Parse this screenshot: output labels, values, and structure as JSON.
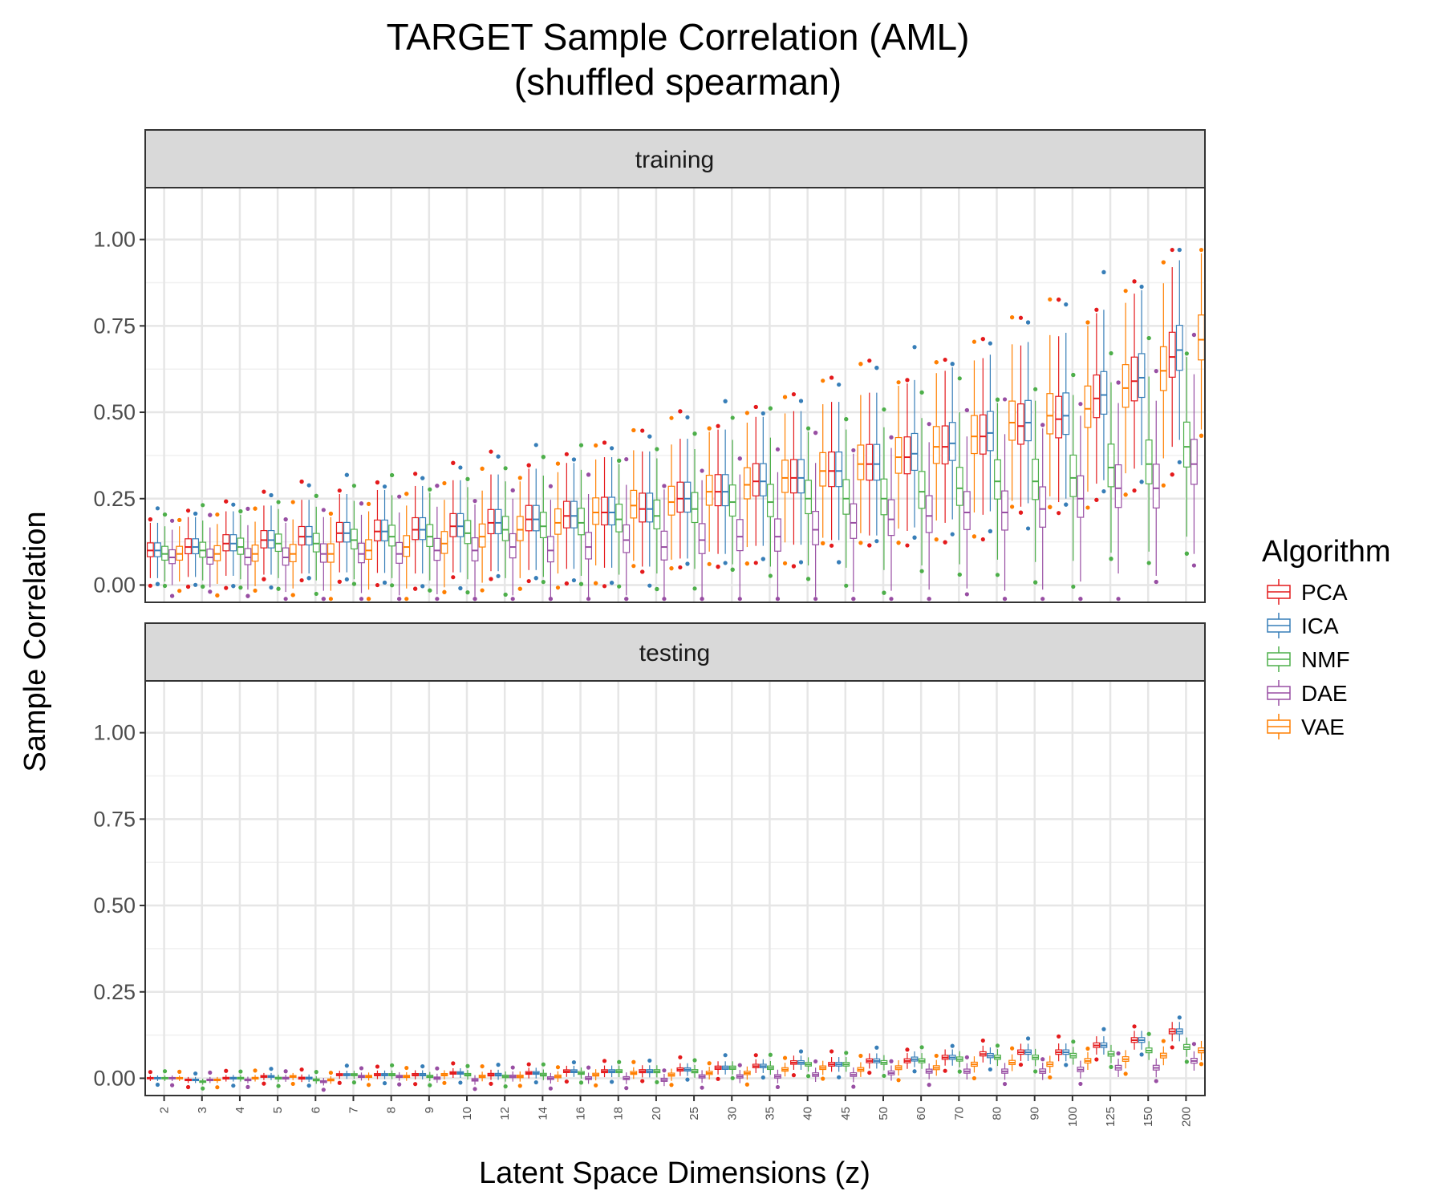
{
  "chart_data": {
    "type": "box",
    "title": "TARGET Sample Correlation (AML)",
    "subtitle": "(shuffled spearman)",
    "xlabel": "Latent Space Dimensions (z)",
    "ylabel": "Sample Correlation",
    "ylim": [
      -0.05,
      1.15
    ],
    "yticks": [
      "0.00",
      "0.25",
      "0.50",
      "0.75",
      "1.00"
    ],
    "grid": true,
    "legend_placement": "right",
    "legend_title": "Algorithm",
    "facets": [
      "training",
      "testing"
    ],
    "categories": [
      "2",
      "3",
      "4",
      "5",
      "6",
      "7",
      "8",
      "9",
      "10",
      "12",
      "14",
      "16",
      "18",
      "20",
      "25",
      "30",
      "35",
      "40",
      "45",
      "50",
      "60",
      "70",
      "80",
      "90",
      "100",
      "125",
      "150",
      "200"
    ],
    "series": [
      {
        "name": "PCA",
        "color": "#e41a1c"
      },
      {
        "name": "ICA",
        "color": "#377eb8"
      },
      {
        "name": "NMF",
        "color": "#4daf4a"
      },
      {
        "name": "DAE",
        "color": "#984ea3"
      },
      {
        "name": "VAE",
        "color": "#ff7f00"
      }
    ],
    "medians": {
      "training": {
        "PCA": [
          0.1,
          0.11,
          0.12,
          0.13,
          0.14,
          0.15,
          0.155,
          0.16,
          0.17,
          0.18,
          0.19,
          0.2,
          0.21,
          0.22,
          0.25,
          0.27,
          0.3,
          0.31,
          0.33,
          0.35,
          0.37,
          0.4,
          0.43,
          0.46,
          0.48,
          0.54,
          0.59,
          0.66
        ],
        "ICA": [
          0.1,
          0.11,
          0.12,
          0.13,
          0.14,
          0.15,
          0.155,
          0.16,
          0.17,
          0.18,
          0.19,
          0.2,
          0.21,
          0.22,
          0.25,
          0.27,
          0.3,
          0.31,
          0.33,
          0.35,
          0.38,
          0.41,
          0.44,
          0.47,
          0.49,
          0.55,
          0.6,
          0.68
        ],
        "NMF": [
          0.09,
          0.1,
          0.11,
          0.12,
          0.12,
          0.13,
          0.14,
          0.14,
          0.15,
          0.16,
          0.17,
          0.18,
          0.19,
          0.2,
          0.22,
          0.24,
          0.24,
          0.25,
          0.25,
          0.25,
          0.27,
          0.28,
          0.3,
          0.3,
          0.31,
          0.34,
          0.35,
          0.4
        ],
        "DAE": [
          0.08,
          0.08,
          0.08,
          0.08,
          0.09,
          0.09,
          0.09,
          0.1,
          0.1,
          0.11,
          0.1,
          0.11,
          0.13,
          0.11,
          0.13,
          0.14,
          0.14,
          0.16,
          0.18,
          0.19,
          0.2,
          0.21,
          0.21,
          0.22,
          0.25,
          0.28,
          0.28,
          0.35
        ],
        "VAE": [
          0.09,
          0.09,
          0.09,
          0.09,
          0.09,
          0.1,
          0.11,
          0.12,
          0.14,
          0.16,
          0.18,
          0.21,
          0.23,
          0.24,
          0.27,
          0.29,
          0.31,
          0.33,
          0.35,
          0.37,
          0.4,
          0.43,
          0.47,
          0.49,
          0.51,
          0.57,
          0.62,
          0.71
        ]
      },
      "testing": {
        "PCA": [
          0.0,
          -0.005,
          0.0,
          0.005,
          0.0,
          0.01,
          0.01,
          0.01,
          0.015,
          0.01,
          0.015,
          0.02,
          0.02,
          0.02,
          0.025,
          0.03,
          0.035,
          0.045,
          0.04,
          0.05,
          0.05,
          0.06,
          0.07,
          0.075,
          0.075,
          0.095,
          0.11,
          0.135
        ],
        "ICA": [
          0.0,
          -0.005,
          0.0,
          0.005,
          0.0,
          0.01,
          0.01,
          0.01,
          0.015,
          0.01,
          0.015,
          0.02,
          0.02,
          0.02,
          0.025,
          0.03,
          0.035,
          0.045,
          0.04,
          0.05,
          0.055,
          0.06,
          0.065,
          0.075,
          0.075,
          0.095,
          0.11,
          0.135
        ],
        "NMF": [
          0.0,
          -0.01,
          0.0,
          0.0,
          -0.005,
          0.01,
          0.01,
          0.005,
          0.01,
          0.005,
          0.01,
          0.015,
          0.02,
          0.02,
          0.02,
          0.03,
          0.03,
          0.04,
          0.04,
          0.045,
          0.05,
          0.055,
          0.06,
          0.06,
          0.065,
          0.07,
          0.08,
          0.09
        ],
        "DAE": [
          0.0,
          -0.005,
          -0.005,
          0.0,
          -0.01,
          0.005,
          0.005,
          0.0,
          -0.005,
          0.005,
          0.0,
          0.0,
          0.0,
          -0.005,
          0.005,
          0.005,
          0.005,
          0.01,
          0.01,
          0.015,
          0.02,
          0.02,
          0.02,
          0.02,
          0.025,
          0.03,
          0.03,
          0.05
        ],
        "VAE": [
          0.0,
          -0.005,
          0.0,
          0.005,
          -0.005,
          0.005,
          0.005,
          0.01,
          0.005,
          0.005,
          0.005,
          0.01,
          0.015,
          0.01,
          0.015,
          0.015,
          0.025,
          0.03,
          0.025,
          0.03,
          0.03,
          0.04,
          0.045,
          0.04,
          0.05,
          0.055,
          0.065,
          0.08
        ]
      }
    }
  }
}
